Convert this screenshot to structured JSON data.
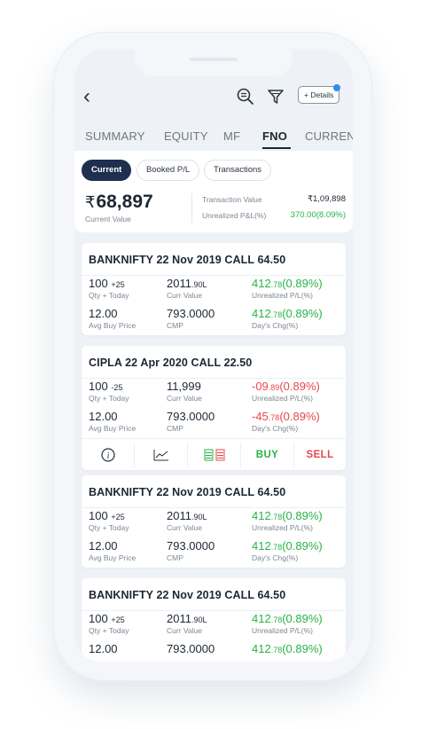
{
  "header": {
    "details_label": "+ Details"
  },
  "tabs": [
    {
      "label": "SUMMARY",
      "active": false
    },
    {
      "label": "EQUITY",
      "active": false
    },
    {
      "label": "MF",
      "active": false
    },
    {
      "label": "FNO",
      "active": true
    },
    {
      "label": "CURRENC",
      "active": false
    }
  ],
  "filters": [
    {
      "label": "Current",
      "active": true
    },
    {
      "label": "Booked P/L",
      "active": false
    },
    {
      "label": "Transactions",
      "active": false
    }
  ],
  "summary": {
    "currency_symbol": "₹",
    "current_value": "68,897",
    "current_value_label": "Current Value",
    "transaction_value_label": "Transaction Value",
    "transaction_value": "₹1,09,898",
    "unrealized_label": "Unrealized P&L(%)",
    "unrealized_value": "370.00(8.09%)"
  },
  "positions": [
    {
      "title": "BANKNIFTY 22 Nov 2019 CALL 64.50",
      "qty": "100",
      "qty_today": "+25",
      "qty_label": "Qty + Today",
      "curr_value": "2011",
      "curr_value_suffix": ".90L",
      "curr_value_label": "Curr Value",
      "unrealized_main": "412",
      "unrealized_dec": ".78",
      "unrealized_pct": "(0.89%)",
      "unrealized_label": "Unrealized P/L(%)",
      "avg_price": "12.00",
      "avg_price_label": "Avg Buy Price",
      "cmp": "793.0000",
      "cmp_label": "CMP",
      "day_main": "412",
      "day_dec": ".78",
      "day_pct": "(0.89%)",
      "day_label": "Day's Chg(%)",
      "direction": "up"
    },
    {
      "title": "CIPLA 22 Apr 2020 CALL 22.50",
      "qty": "100",
      "qty_today": "-25",
      "qty_label": "Qty + Today",
      "curr_value": "11,999",
      "curr_value_suffix": "",
      "curr_value_label": "Curr Value",
      "unrealized_main": "-09",
      "unrealized_dec": ".89",
      "unrealized_pct": "(0.89%)",
      "unrealized_label": "Unrealized P/L(%)",
      "avg_price": "12.00",
      "avg_price_label": "Avg Buy Price",
      "cmp": "793.0000",
      "cmp_label": "CMP",
      "day_main": "-45",
      "day_dec": ".78",
      "day_pct": "(0.89%)",
      "day_label": "Day's Chg(%)",
      "direction": "down",
      "actions": {
        "buy": "BUY",
        "sell": "SELL"
      }
    },
    {
      "title": "BANKNIFTY 22 Nov 2019 CALL 64.50",
      "qty": "100",
      "qty_today": "+25",
      "qty_label": "Qty + Today",
      "curr_value": "2011",
      "curr_value_suffix": ".90L",
      "curr_value_label": "Curr Value",
      "unrealized_main": "412",
      "unrealized_dec": ".78",
      "unrealized_pct": "(0.89%)",
      "unrealized_label": "Unrealized P/L(%)",
      "avg_price": "12.00",
      "avg_price_label": "Avg Buy Price",
      "cmp": "793.0000",
      "cmp_label": "CMP",
      "day_main": "412",
      "day_dec": ".78",
      "day_pct": "(0.89%)",
      "day_label": "Day's Chg(%)",
      "direction": "up"
    },
    {
      "title": "BANKNIFTY 22 Nov 2019 CALL 64.50",
      "qty": "100",
      "qty_today": "+25",
      "qty_label": "Qty + Today",
      "curr_value": "2011",
      "curr_value_suffix": ".90L",
      "curr_value_label": "Curr Value",
      "unrealized_main": "412",
      "unrealized_dec": ".78",
      "unrealized_pct": "(0.89%)",
      "unrealized_label": "Unrealized P/L(%)",
      "avg_price": "12.00",
      "cmp": "793.0000",
      "day_main": "412",
      "day_dec": ".78",
      "day_pct": "(0.89%)",
      "direction": "up"
    }
  ],
  "colors": {
    "positive": "#29b24a",
    "negative": "#e8474c",
    "primary": "#1e2f4f"
  }
}
